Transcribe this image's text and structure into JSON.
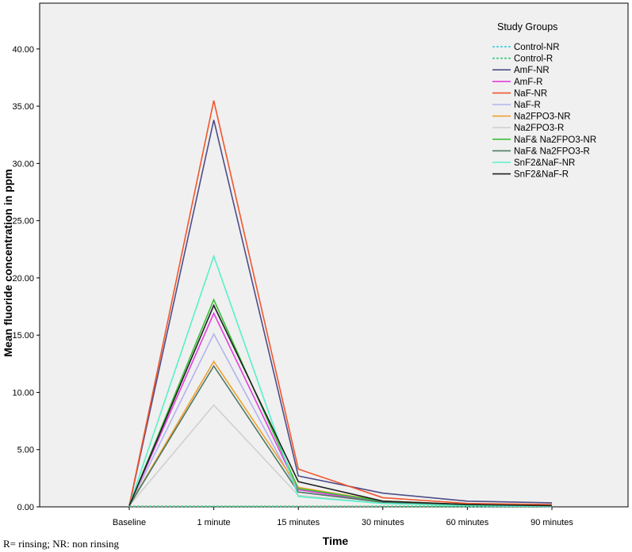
{
  "footnote": "R= rinsing; NR: non rinsing",
  "chart_data": {
    "type": "line",
    "title": "",
    "xlabel": "Time",
    "ylabel": "Mean fluoride concentration in ppm",
    "categories": [
      "Baseline",
      "1 minute",
      "15 minutes",
      "30 minutes",
      "60 minutes",
      "90 minutes"
    ],
    "ylim": [
      0,
      44
    ],
    "yticks": [
      "0.00",
      "5.00",
      "10.00",
      "15.00",
      "20.00",
      "25.00",
      "30.00",
      "35.00",
      "40.00"
    ],
    "grid": false,
    "background": "#f0f0f0",
    "legend": {
      "title": "Study Groups",
      "position": "top-right"
    },
    "series": [
      {
        "name": "Control-NR",
        "color": "#3fc6d6",
        "dash": true,
        "values": [
          0.05,
          0.05,
          0.05,
          0.05,
          0.05,
          0.05
        ]
      },
      {
        "name": "Control-R",
        "color": "#3cc47c",
        "dash": true,
        "values": [
          0.05,
          0.05,
          0.05,
          0.05,
          0.05,
          0.05
        ]
      },
      {
        "name": "AmF-NR",
        "color": "#4d4d8a",
        "dash": false,
        "values": [
          0.1,
          33.8,
          2.7,
          1.2,
          0.5,
          0.35
        ]
      },
      {
        "name": "AmF-R",
        "color": "#e23ee0",
        "dash": false,
        "values": [
          0.1,
          16.9,
          1.5,
          0.4,
          0.15,
          0.1
        ]
      },
      {
        "name": "NaF-NR",
        "color": "#f2552c",
        "dash": false,
        "values": [
          0.1,
          35.5,
          3.3,
          0.8,
          0.3,
          0.2
        ]
      },
      {
        "name": "NaF-R",
        "color": "#b3b3f0",
        "dash": false,
        "values": [
          0.1,
          15.1,
          1.3,
          0.4,
          0.15,
          0.1
        ]
      },
      {
        "name": "Na2FPO3-NR",
        "color": "#f0a030",
        "dash": false,
        "values": [
          0.1,
          12.7,
          1.7,
          0.5,
          0.2,
          0.1
        ]
      },
      {
        "name": "Na2FPO3-R",
        "color": "#d0d0d0",
        "dash": false,
        "values": [
          0.1,
          8.9,
          1.0,
          0.3,
          0.1,
          0.05
        ]
      },
      {
        "name": "NaF& Na2FPO3-NR",
        "color": "#38c038",
        "dash": false,
        "values": [
          0.1,
          18.1,
          1.6,
          0.5,
          0.2,
          0.1
        ]
      },
      {
        "name": "NaF& Na2FPO3-R",
        "color": "#4e7a62",
        "dash": false,
        "values": [
          0.1,
          12.3,
          1.3,
          0.4,
          0.15,
          0.1
        ]
      },
      {
        "name": "SnF2&NaF-NR",
        "color": "#58f0c8",
        "dash": false,
        "values": [
          0.1,
          21.9,
          0.9,
          0.3,
          0.1,
          0.05
        ]
      },
      {
        "name": "SnF2&NaF-R",
        "color": "#202020",
        "dash": false,
        "values": [
          0.1,
          17.6,
          2.2,
          0.5,
          0.2,
          0.1
        ]
      }
    ]
  }
}
